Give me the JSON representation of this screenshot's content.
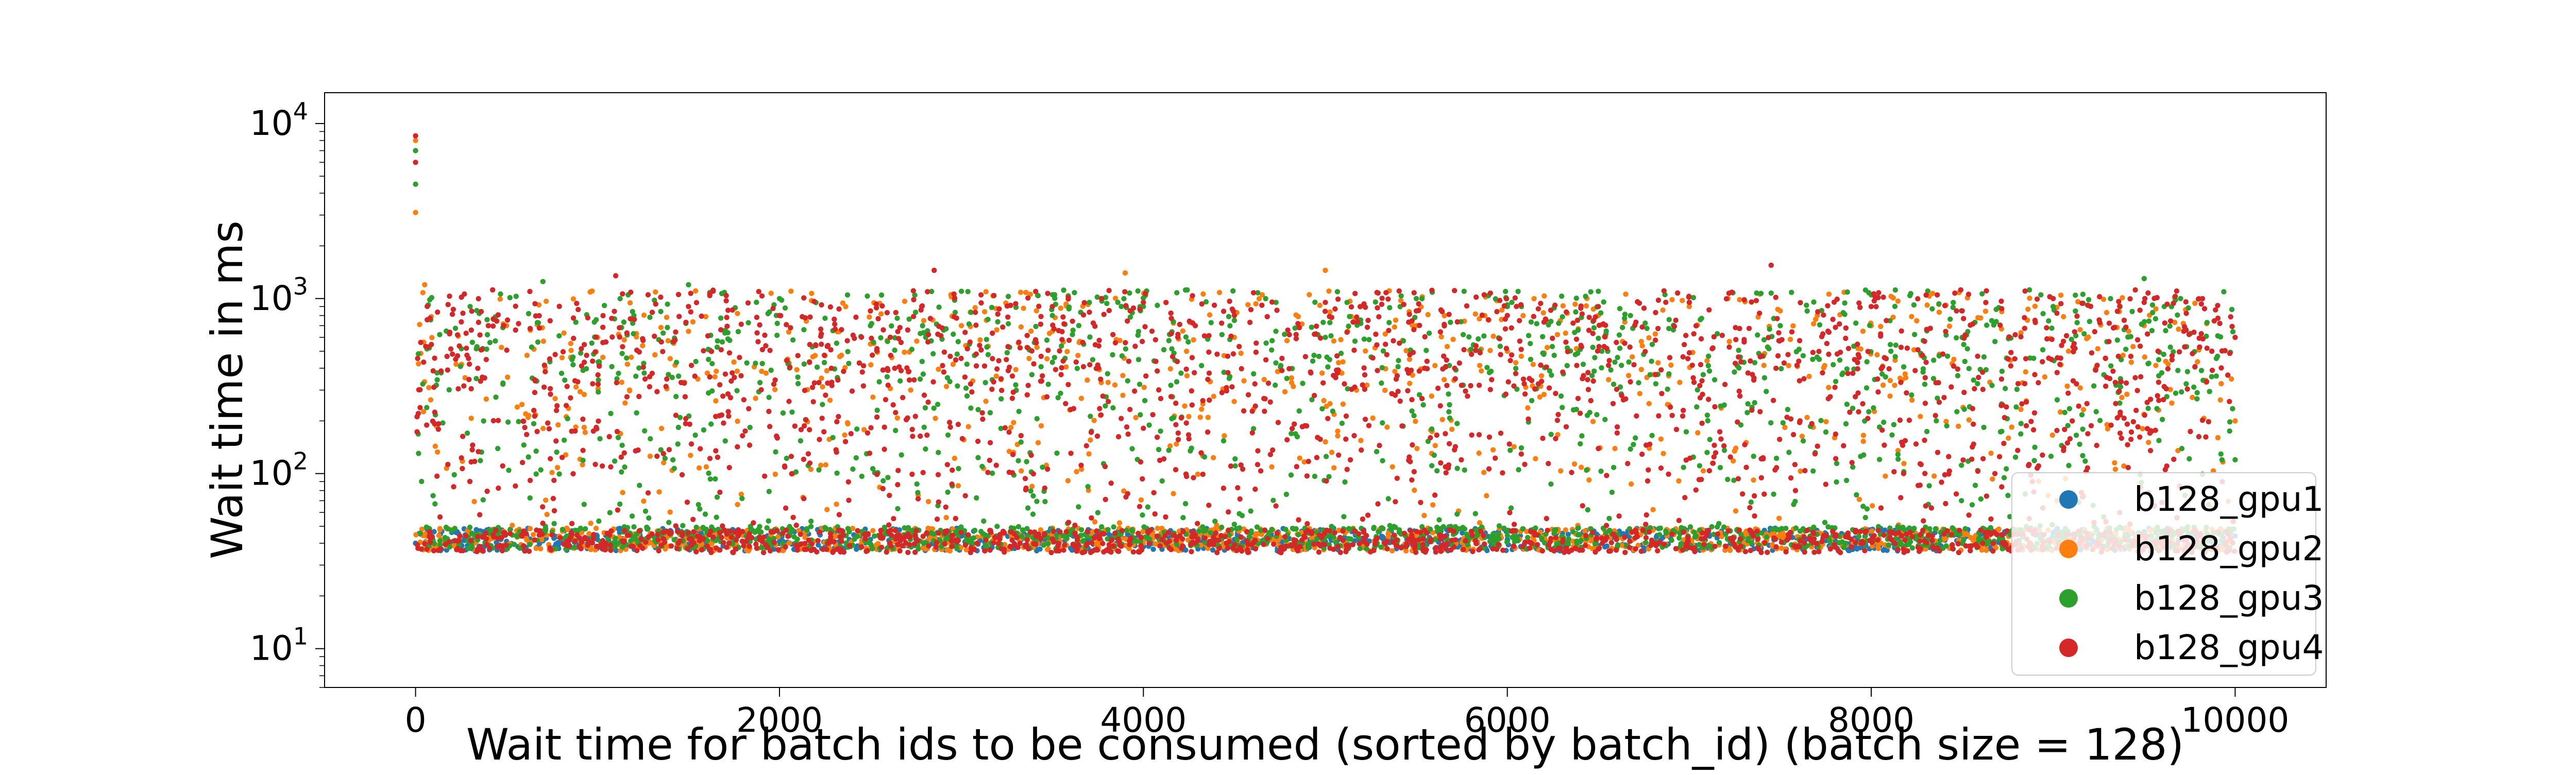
{
  "chart_data": {
    "type": "scatter",
    "title": "",
    "xlabel": "Wait time for batch ids to be consumed (sorted by batch_id) (batch size = 128)",
    "ylabel": "Wait time in ms",
    "xlim": [
      -500,
      10500
    ],
    "ylim": [
      6,
      15000
    ],
    "yscale": "log",
    "grid": false,
    "legend_position": "lower-right",
    "xticks": [
      0,
      2000,
      4000,
      6000,
      8000,
      10000
    ],
    "xtick_labels": [
      "0",
      "2000",
      "4000",
      "6000",
      "8000",
      "10000"
    ],
    "yticks": [
      10,
      100,
      1000,
      10000
    ],
    "ytick_labels": [
      {
        "base": "10",
        "exp": "1"
      },
      {
        "base": "10",
        "exp": "2"
      },
      {
        "base": "10",
        "exp": "3"
      },
      {
        "base": "10",
        "exp": "4"
      }
    ],
    "series": [
      {
        "name": "b128_gpu1",
        "color": "#1f77b4",
        "baseline_ms": 42,
        "x": [
          0,
          500,
          1000,
          1500,
          2000,
          2500,
          3000,
          3500,
          4000,
          4500,
          5000,
          5500,
          6000,
          6500,
          7000,
          7500,
          8000,
          8500,
          9000,
          9500,
          10000
        ],
        "y": [
          40,
          41,
          42,
          43,
          41,
          42,
          44,
          42,
          43,
          42,
          41,
          43,
          42,
          44,
          42,
          43,
          45,
          44,
          46,
          45,
          44
        ]
      },
      {
        "name": "b128_gpu2",
        "color": "#ff7f0e",
        "baseline_ms": 42,
        "x": [
          0,
          0,
          50,
          500,
          1000,
          1500,
          2000,
          2500,
          3000,
          3500,
          3900,
          4500,
          5000,
          5500,
          6000,
          6500,
          7000,
          7500,
          8000,
          8500,
          9000,
          9500,
          10000
        ],
        "y": [
          3100,
          8000,
          1200,
          700,
          600,
          650,
          800,
          550,
          700,
          650,
          1400,
          600,
          1450,
          700,
          500,
          800,
          900,
          850,
          700,
          600,
          900,
          700,
          200
        ]
      },
      {
        "name": "b128_gpu3",
        "color": "#2ca02c",
        "baseline_ms": 43,
        "x": [
          0,
          0,
          300,
          700,
          1200,
          1500,
          2000,
          2500,
          3000,
          3500,
          4000,
          4500,
          5000,
          5500,
          6000,
          6500,
          7000,
          7500,
          8000,
          8500,
          9000,
          9500,
          9700,
          10000
        ],
        "y": [
          4500,
          7000,
          900,
          1250,
          800,
          1200,
          1000,
          700,
          1100,
          800,
          900,
          750,
          600,
          1000,
          900,
          1100,
          950,
          700,
          1050,
          600,
          900,
          1300,
          1000,
          120
        ]
      },
      {
        "name": "b128_gpu4",
        "color": "#d62728",
        "baseline_ms": 41,
        "x": [
          0,
          0,
          400,
          1100,
          1500,
          2000,
          2500,
          2850,
          3500,
          4000,
          4500,
          5000,
          5500,
          6000,
          6500,
          7000,
          7450,
          8000,
          8500,
          9000,
          9500,
          10000
        ],
        "y": [
          8500,
          6000,
          700,
          1350,
          900,
          800,
          850,
          1450,
          900,
          950,
          800,
          950,
          850,
          800,
          900,
          950,
          1550,
          900,
          850,
          1000,
          950,
          600
        ]
      }
    ]
  }
}
